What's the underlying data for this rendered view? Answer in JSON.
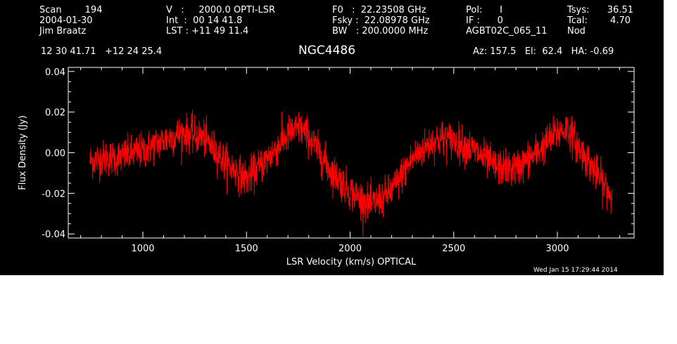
{
  "header": {
    "col1": [
      "Scan        194",
      "2004-01-30",
      "Jim Braatz"
    ],
    "col2": [
      "V   :     2000.0 OPTI-LSR",
      "Int  :  00 14 41.8",
      "LST : +11 49 11.4"
    ],
    "col3": [
      "F0   :  22.23508 GHz",
      "Fsky :  22.08978 GHz",
      "BW   : 200.0000 MHz"
    ],
    "col4": [
      "Pol:      I",
      "IF :      0",
      "AGBT02C_065_11"
    ],
    "col5": [
      "Tsys:",
      "Tcal:",
      "Nod"
    ],
    "col6": [
      "36.51",
      "4.70",
      ""
    ],
    "coords": "12 30 41.71   +12 24 25.4",
    "source": "NGC4486",
    "azel": "Az: 157.5   El:  62.4   HA: -0.69"
  },
  "timestamp": "Wed Jan 15 17:29:44 2014",
  "colors": {
    "background": "#000000",
    "foreground": "#ffffff",
    "series": "#ff0000"
  },
  "chart_data": {
    "type": "line",
    "title": "NGC4486",
    "xlabel": "LSR Velocity (km/s) OPTICAL",
    "ylabel": "Flux Density (Jy)",
    "xlim": [
      640,
      3370
    ],
    "ylim": [
      -0.042,
      0.042
    ],
    "xticks": [
      1000,
      1500,
      2000,
      2500,
      3000
    ],
    "yticks": [
      -0.04,
      -0.02,
      0.0,
      0.02,
      0.04
    ],
    "ytick_labels": [
      "-0.04",
      "-0.02",
      "0.00",
      "0.02",
      "0.04"
    ],
    "noise_sigma_jy": 0.0045,
    "series": [
      {
        "style": "noisy spectrum",
        "x_range": [
          745,
          3265
        ],
        "x": [
          745,
          800,
          900,
          1000,
          1100,
          1200,
          1300,
          1400,
          1500,
          1600,
          1700,
          1760,
          1800,
          1900,
          2000,
          2100,
          2200,
          2300,
          2400,
          2450,
          2500,
          2600,
          2700,
          2800,
          2900,
          3000,
          3050,
          3100,
          3200,
          3265
        ],
        "y": [
          -0.004,
          -0.003,
          -0.002,
          0.001,
          0.006,
          0.01,
          0.007,
          -0.005,
          -0.013,
          -0.003,
          0.009,
          0.012,
          0.008,
          -0.008,
          -0.019,
          -0.026,
          -0.019,
          -0.003,
          0.006,
          0.007,
          0.006,
          0.001,
          -0.007,
          -0.008,
          0.0,
          0.01,
          0.012,
          0.003,
          -0.012,
          -0.022
        ]
      }
    ]
  }
}
